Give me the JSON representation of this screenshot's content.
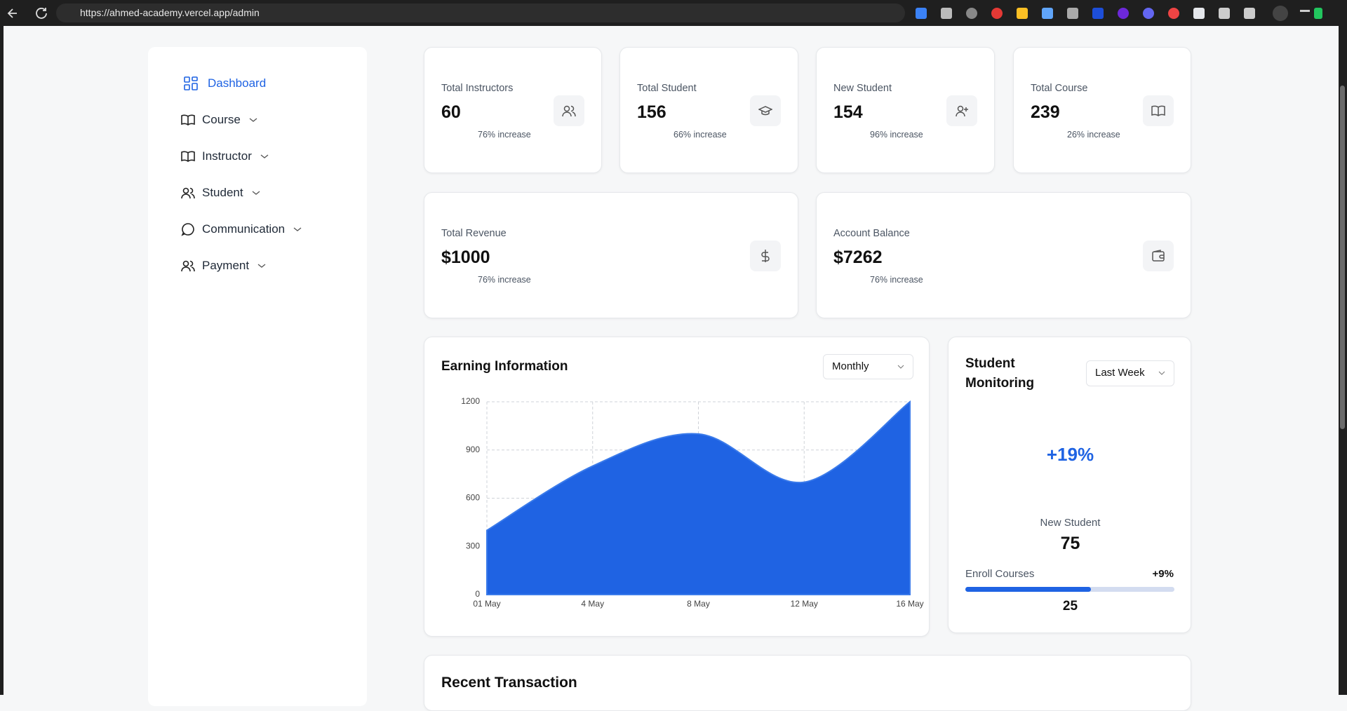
{
  "browser": {
    "url": "https://ahmed-academy.vercel.app/admin"
  },
  "sidebar": {
    "items": [
      "Dashboard",
      "Course",
      "Instructor",
      "Student",
      "Communication",
      "Payment"
    ]
  },
  "stats": [
    {
      "label": "Total Instructors",
      "value": "60",
      "note": "76% increase"
    },
    {
      "label": "Total Student",
      "value": "156",
      "note": "66% increase"
    },
    {
      "label": "New Student",
      "value": "154",
      "note": "96% increase"
    },
    {
      "label": "Total Course",
      "value": "239",
      "note": "26% increase"
    },
    {
      "label": "Total Revenue",
      "value": "$1000",
      "note": "76% increase"
    },
    {
      "label": "Account Balance",
      "value": "$7262",
      "note": "76% increase"
    }
  ],
  "earning_filter": "Monthly",
  "chart_data": {
    "type": "area",
    "title": "Earning Information",
    "categories": [
      "01 May",
      "4 May",
      "8 May",
      "12 May",
      "16 May"
    ],
    "values": [
      400,
      800,
      1000,
      700,
      1200
    ],
    "color": "#1f63e3",
    "ylim": [
      0,
      1200
    ],
    "yticks": [
      0,
      300,
      600,
      900,
      1200
    ],
    "grid": true
  },
  "monitoring": {
    "title": "Student Monitoring",
    "filter": "Last Week",
    "change": "+19%",
    "new_label": "New Student",
    "new_value": "75",
    "enroll_label": "Enroll Courses",
    "enroll_change": "+9%",
    "enroll_value": "25"
  },
  "transactions": {
    "title": "Recent Transaction"
  }
}
